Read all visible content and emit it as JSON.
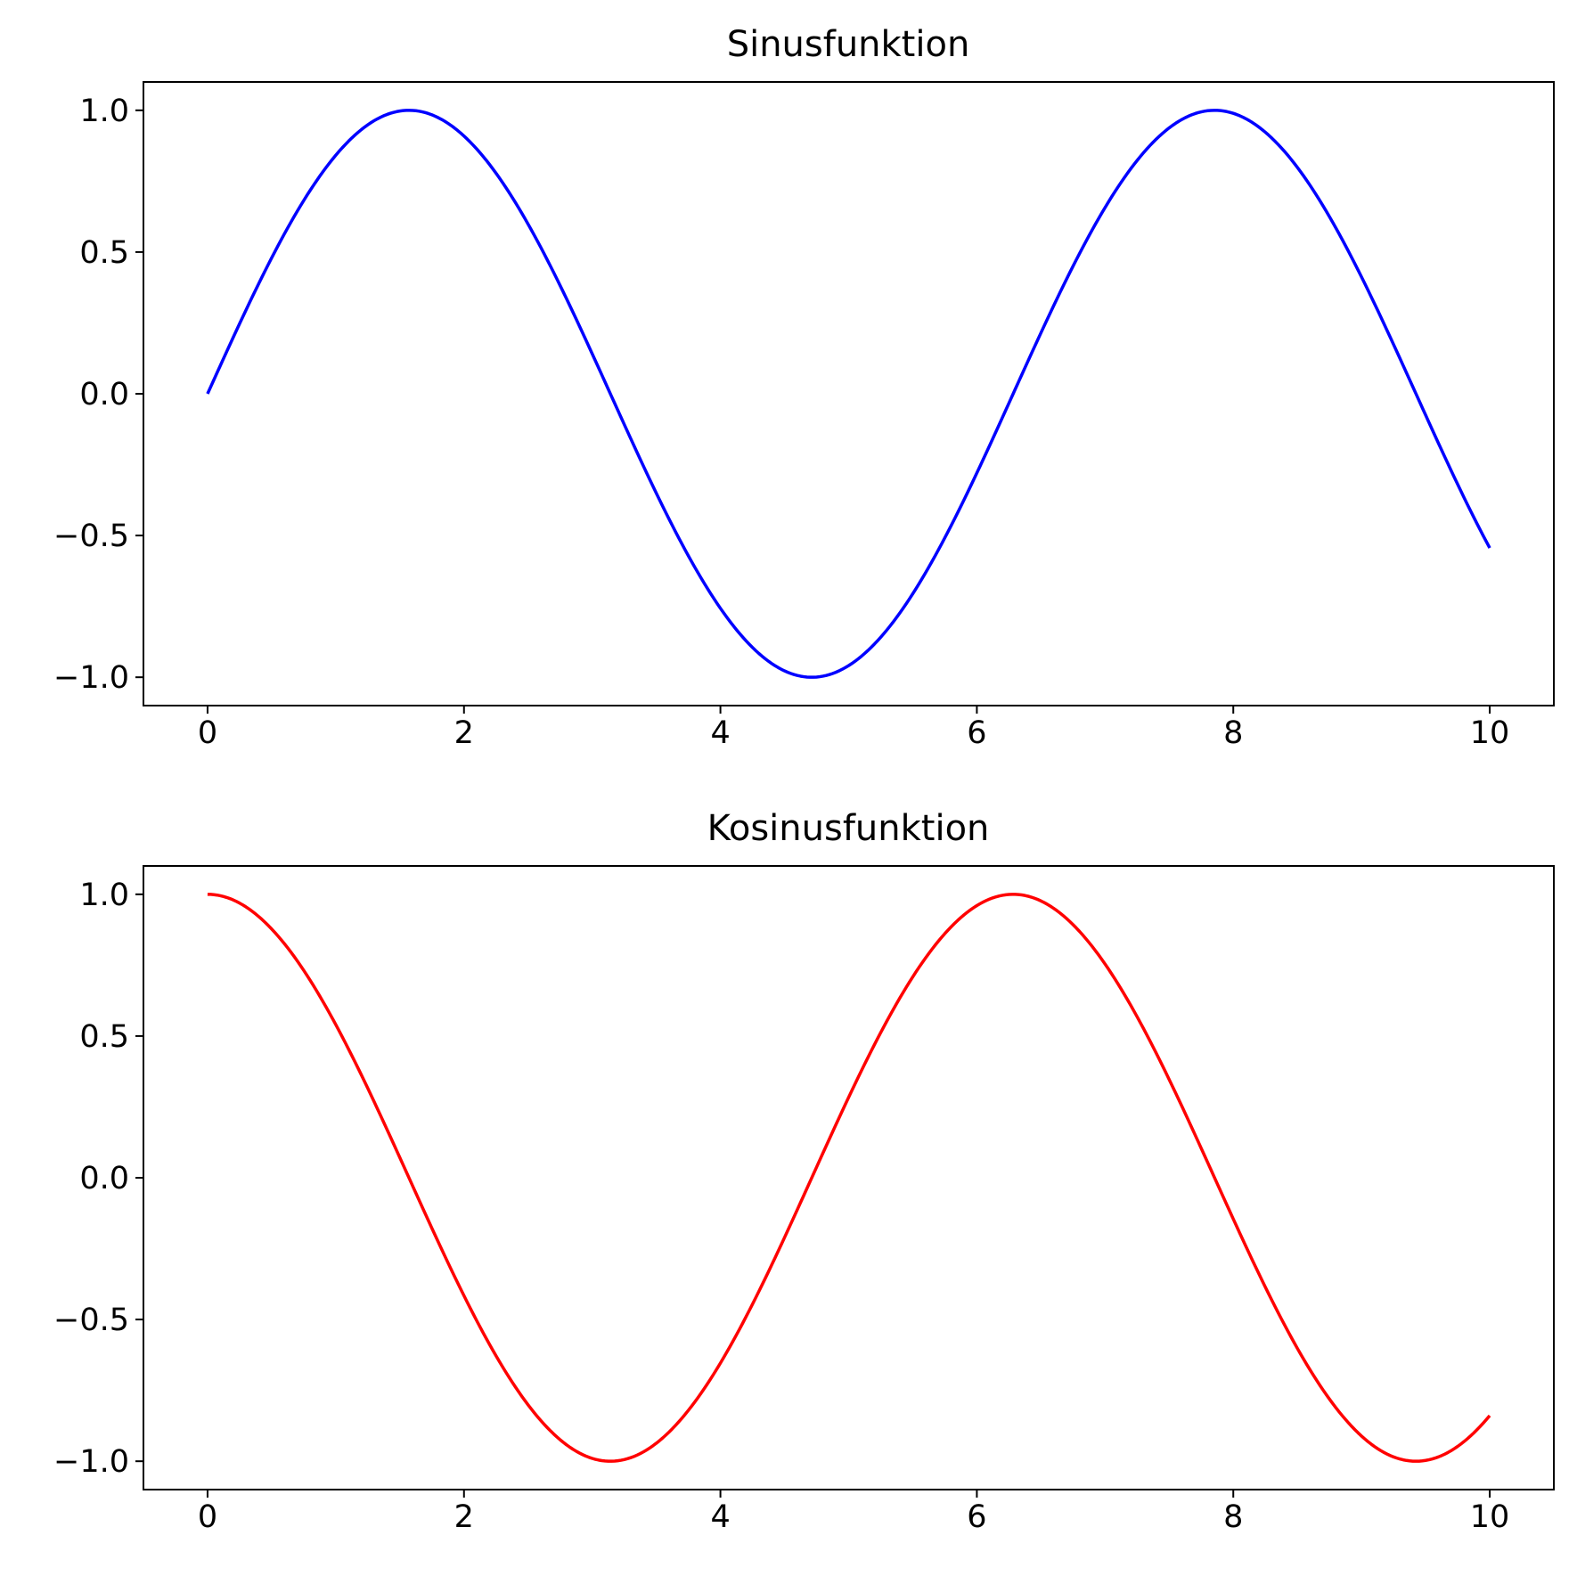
{
  "chart_data": [
    {
      "type": "line",
      "title": "Sinusfunktion",
      "xlabel": "",
      "ylabel": "",
      "xlim": [
        -0.5,
        10.5
      ],
      "ylim": [
        -1.1,
        1.1
      ],
      "xticks": [
        0,
        2,
        4,
        6,
        8,
        10
      ],
      "xtick_labels": [
        "0",
        "2",
        "4",
        "6",
        "8",
        "10"
      ],
      "yticks": [
        1.0,
        0.5,
        0.0,
        -0.5,
        -1.0
      ],
      "ytick_labels": [
        "1.0",
        "0.5",
        "0.0",
        "−0.5",
        "−1.0"
      ],
      "grid": false,
      "series": [
        {
          "function": "sin",
          "color": "#0000ff",
          "x": [
            0,
            0.5,
            1,
            1.5,
            1.571,
            2,
            2.5,
            3,
            3.5,
            4,
            4.5,
            4.712,
            5,
            5.5,
            6,
            6.5,
            7,
            7.5,
            7.854,
            8,
            8.5,
            9,
            9.5,
            10
          ],
          "y": [
            0,
            0.479,
            0.841,
            0.997,
            1.0,
            0.909,
            0.598,
            0.141,
            -0.351,
            -0.757,
            -0.978,
            -1.0,
            -0.959,
            -0.706,
            -0.279,
            0.215,
            0.657,
            0.938,
            1.0,
            0.989,
            0.798,
            0.412,
            -0.075,
            -0.544
          ]
        }
      ]
    },
    {
      "type": "line",
      "title": "Kosinusfunktion",
      "xlabel": "",
      "ylabel": "",
      "xlim": [
        -0.5,
        10.5
      ],
      "ylim": [
        -1.1,
        1.1
      ],
      "xticks": [
        0,
        2,
        4,
        6,
        8,
        10
      ],
      "xtick_labels": [
        "0",
        "2",
        "4",
        "6",
        "8",
        "10"
      ],
      "yticks": [
        1.0,
        0.5,
        0.0,
        -0.5,
        -1.0
      ],
      "ytick_labels": [
        "1.0",
        "0.5",
        "0.0",
        "−0.5",
        "−1.0"
      ],
      "grid": false,
      "series": [
        {
          "function": "cos",
          "color": "#ff0000",
          "x": [
            0,
            0.5,
            1,
            1.5,
            2,
            2.5,
            3,
            3.142,
            3.5,
            4,
            4.5,
            5,
            5.5,
            6,
            6.283,
            6.5,
            7,
            7.5,
            8,
            8.5,
            9,
            9.425,
            10
          ],
          "y": [
            1.0,
            0.878,
            0.54,
            0.071,
            -0.416,
            -0.801,
            -0.99,
            -1.0,
            -0.936,
            -0.654,
            -0.211,
            0.284,
            0.709,
            0.96,
            1.0,
            0.977,
            0.754,
            0.347,
            -0.146,
            -0.602,
            -0.911,
            -1.0,
            -0.839
          ]
        }
      ]
    }
  ]
}
